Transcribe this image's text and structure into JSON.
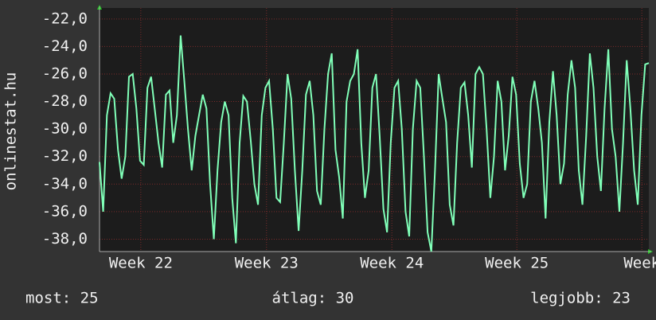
{
  "chart_data": {
    "type": "line",
    "y_label": "onlinestat.hu",
    "series": [
      {
        "name": null,
        "color": "#80ffb8",
        "values": [
          -32.4,
          -36.0,
          -29.0,
          -27.4,
          -27.8,
          -31.5,
          -33.6,
          -32.0,
          -26.2,
          -26.0,
          -28.5,
          -32.3,
          -32.6,
          -27.0,
          -26.2,
          -28.6,
          -31.0,
          -32.8,
          -27.5,
          -27.2,
          -31.0,
          -29.0,
          -23.2,
          -26.5,
          -30.0,
          -33.0,
          -30.5,
          -29.0,
          -27.5,
          -28.5,
          -34.0,
          -38.0,
          -33.0,
          -29.5,
          -28.0,
          -29.0,
          -35.0,
          -38.3,
          -31.0,
          -27.6,
          -28.0,
          -30.8,
          -34.0,
          -35.5,
          -29.0,
          -27.0,
          -26.5,
          -30.0,
          -35.0,
          -35.3,
          -31.0,
          -26.0,
          -27.8,
          -33.0,
          -37.4,
          -33.0,
          -27.5,
          -26.5,
          -29.0,
          -34.5,
          -35.5,
          -30.0,
          -26.0,
          -24.5,
          -31.5,
          -33.5,
          -36.5,
          -28.0,
          -26.5,
          -26.0,
          -24.2,
          -31.0,
          -35.0,
          -33.0,
          -27.0,
          -26.0,
          -30.5,
          -35.8,
          -37.5,
          -31.0,
          -27.0,
          -26.5,
          -30.0,
          -36.0,
          -37.8,
          -30.0,
          -26.5,
          -27.0,
          -32.0,
          -37.5,
          -38.9,
          -33.0,
          -26.0,
          -27.8,
          -29.5,
          -35.5,
          -37.0,
          -31.0,
          -27.0,
          -26.6,
          -29.0,
          -32.8,
          -26.0,
          -25.5,
          -26.0,
          -30.0,
          -35.0,
          -32.0,
          -26.5,
          -28.0,
          -33.0,
          -30.5,
          -26.2,
          -27.5,
          -32.5,
          -35.0,
          -34.0,
          -28.0,
          -26.5,
          -28.5,
          -31.0,
          -36.5,
          -29.5,
          -25.8,
          -29.0,
          -34.0,
          -32.5,
          -27.5,
          -25.0,
          -27.0,
          -33.0,
          -35.5,
          -30.5,
          -24.5,
          -27.0,
          -32.0,
          -34.5,
          -28.5,
          -24.2,
          -30.0,
          -32.0,
          -36.0,
          -31.0,
          -25.0,
          -28.5,
          -33.0,
          -35.5,
          -29.0,
          -25.3,
          -25.2
        ]
      }
    ],
    "xlim": [
      0,
      149
    ],
    "xticks": [
      {
        "value": 11.2,
        "label": "Week 22"
      },
      {
        "value": 45.3,
        "label": "Week 23"
      },
      {
        "value": 79.3,
        "label": "Week 24"
      },
      {
        "value": 113.2,
        "label": "Week 25"
      },
      {
        "value": 147.1,
        "label": "Week"
      }
    ],
    "ylim": [
      -38.9,
      -21.2
    ],
    "yticks": [
      {
        "value": -22,
        "label": "-22,0"
      },
      {
        "value": -24,
        "label": "-24,0"
      },
      {
        "value": -26,
        "label": "-26,0"
      },
      {
        "value": -28,
        "label": "-28,0"
      },
      {
        "value": -30,
        "label": "-30,0"
      },
      {
        "value": -32,
        "label": "-32,0"
      },
      {
        "value": -34,
        "label": "-34,0"
      },
      {
        "value": -36,
        "label": "-36,0"
      },
      {
        "value": -38,
        "label": "-38,0"
      }
    ],
    "grid": true,
    "stats": [
      "most: 25",
      "átlag: 30",
      "legjobb: 23"
    ]
  }
}
